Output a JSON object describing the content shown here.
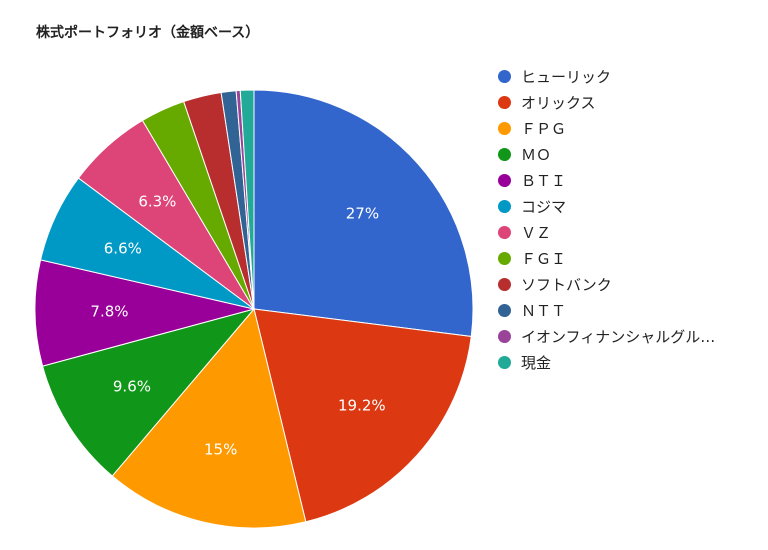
{
  "chart_data": {
    "type": "pie",
    "title": "株式ポートフォリオ（金額ベース）",
    "legend_position": "right",
    "slices": [
      {
        "name": "ヒューリック",
        "value": 27.0,
        "label": "27%",
        "color": "#3366cc"
      },
      {
        "name": "オリックス",
        "value": 19.2,
        "label": "19.2%",
        "color": "#dc3912"
      },
      {
        "name": "ＦＰＧ",
        "value": 15.0,
        "label": "15%",
        "color": "#ff9900"
      },
      {
        "name": "ＭＯ",
        "value": 9.6,
        "label": "9.6%",
        "color": "#109618"
      },
      {
        "name": "ＢＴＩ",
        "value": 7.8,
        "label": "7.8%",
        "color": "#990099"
      },
      {
        "name": "コジマ",
        "value": 6.6,
        "label": "6.6%",
        "color": "#0099c6"
      },
      {
        "name": "ＶＺ",
        "value": 6.3,
        "label": "6.3%",
        "color": "#dd4477"
      },
      {
        "name": "ＦＧＩ",
        "value": 3.3,
        "label": "",
        "color": "#66aa00"
      },
      {
        "name": "ソフトバンク",
        "value": 2.8,
        "label": "",
        "color": "#b82e2e"
      },
      {
        "name": "ＮＴＴ",
        "value": 1.1,
        "label": "",
        "color": "#316395"
      },
      {
        "name": "イオンフィナンシャルグル…",
        "value": 0.3,
        "label": "",
        "color": "#994499"
      },
      {
        "name": "現金",
        "value": 1.0,
        "label": "",
        "color": "#22aa99"
      }
    ]
  }
}
